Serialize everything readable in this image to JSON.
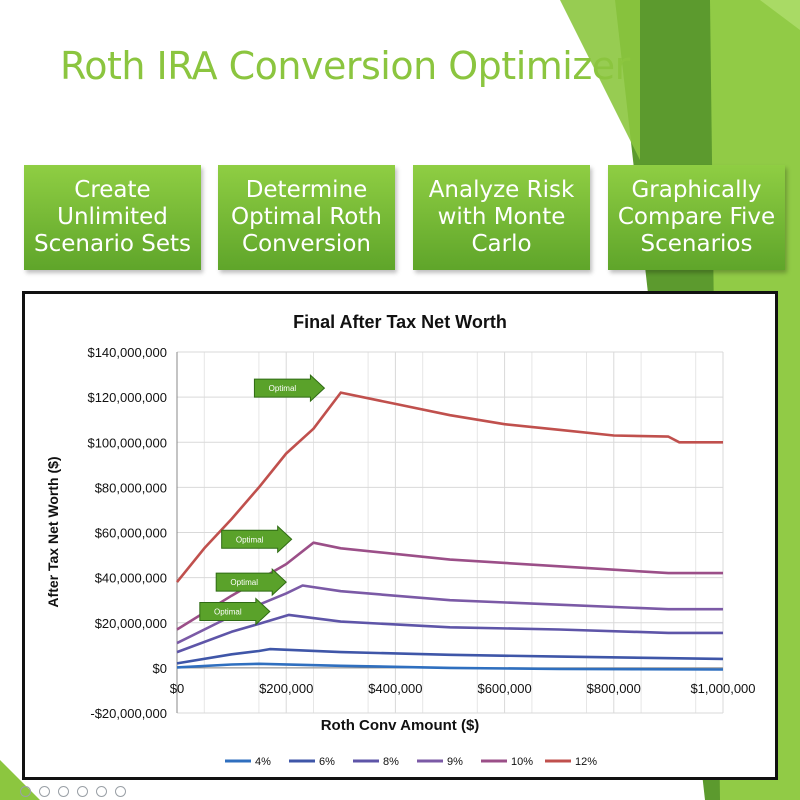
{
  "title": "Roth IRA Conversion Optimizer",
  "features": [
    {
      "label": "Create\nUnlimited\nScenario Sets"
    },
    {
      "label": "Determine\nOptimal Roth\nConversion"
    },
    {
      "label": "Analyze Risk\nwith Monte\nCarlo"
    },
    {
      "label": "Graphically\nCompare Five\nScenarios"
    }
  ],
  "colors": {
    "accent": "#8bc53f",
    "box_top": "#8fce43",
    "box_bottom": "#5fa52a"
  },
  "chart_data": {
    "type": "line",
    "title": "Final After Tax Net Worth",
    "xlabel": "Roth Conv Amount ($)",
    "ylabel": "After Tax Net Worth ($)",
    "xlim": [
      0,
      1000000
    ],
    "ylim": [
      -20000000,
      140000000
    ],
    "x_ticks": [
      0,
      200000,
      400000,
      600000,
      800000,
      1000000
    ],
    "x_tick_labels": [
      "$0",
      "$200,000",
      "$400,000",
      "$600,000",
      "$800,000",
      "$1,000,000"
    ],
    "y_ticks": [
      -20000000,
      0,
      20000000,
      40000000,
      60000000,
      80000000,
      100000000,
      120000000,
      140000000
    ],
    "y_tick_labels": [
      "-$20,000,000",
      "$0",
      "$20,000,000",
      "$40,000,000",
      "$60,000,000",
      "$80,000,000",
      "$100,000,000",
      "$120,000,000",
      "$140,000,000"
    ],
    "grid": true,
    "legend_position": "bottom",
    "series": [
      {
        "name": "4%",
        "color": "#2f6fbf",
        "x": [
          0,
          100000,
          150000,
          300000,
          500000,
          700000,
          1000000
        ],
        "y": [
          200000,
          1500000,
          1800000,
          900000,
          0,
          -500000,
          -700000
        ]
      },
      {
        "name": "6%",
        "color": "#3f56a8",
        "x": [
          0,
          100000,
          150000,
          170000,
          300000,
          500000,
          700000,
          1000000
        ],
        "y": [
          2000000,
          6000000,
          7500000,
          8300000,
          7000000,
          5800000,
          5000000,
          4000000
        ]
      },
      {
        "name": "8%",
        "color": "#5e55a8",
        "x": [
          0,
          100000,
          150000,
          205000,
          300000,
          500000,
          700000,
          900000,
          1000000
        ],
        "y": [
          7000000,
          16000000,
          19500000,
          23500000,
          20500000,
          18000000,
          17000000,
          15500000,
          15500000
        ]
      },
      {
        "name": "9%",
        "color": "#7b5aa6",
        "x": [
          0,
          100000,
          200000,
          230000,
          300000,
          500000,
          700000,
          900000,
          1000000
        ],
        "y": [
          11000000,
          23000000,
          33000000,
          36500000,
          34000000,
          30000000,
          28000000,
          26000000,
          26000000
        ]
      },
      {
        "name": "10%",
        "color": "#9b4f88",
        "x": [
          0,
          100000,
          200000,
          250000,
          300000,
          500000,
          700000,
          900000,
          1000000
        ],
        "y": [
          17000000,
          32000000,
          46000000,
          55500000,
          53000000,
          48000000,
          45000000,
          42000000,
          42000000
        ]
      },
      {
        "name": "12%",
        "color": "#c0504d",
        "x": [
          0,
          50000,
          100000,
          150000,
          200000,
          250000,
          300000,
          400000,
          500000,
          600000,
          700000,
          800000,
          900000,
          920000,
          1000000
        ],
        "y": [
          38000000,
          53000000,
          66000000,
          80000000,
          95000000,
          106000000,
          122000000,
          117000000,
          112000000,
          108000000,
          105500000,
          103000000,
          102500000,
          100000000,
          100000000
        ]
      }
    ],
    "annotations": [
      {
        "text": "Optimal",
        "x": 270000,
        "y": 124000000
      },
      {
        "text": "Optimal",
        "x": 210000,
        "y": 57000000
      },
      {
        "text": "Optimal",
        "x": 200000,
        "y": 38000000
      },
      {
        "text": "Optimal",
        "x": 170000,
        "y": 25000000
      }
    ]
  }
}
